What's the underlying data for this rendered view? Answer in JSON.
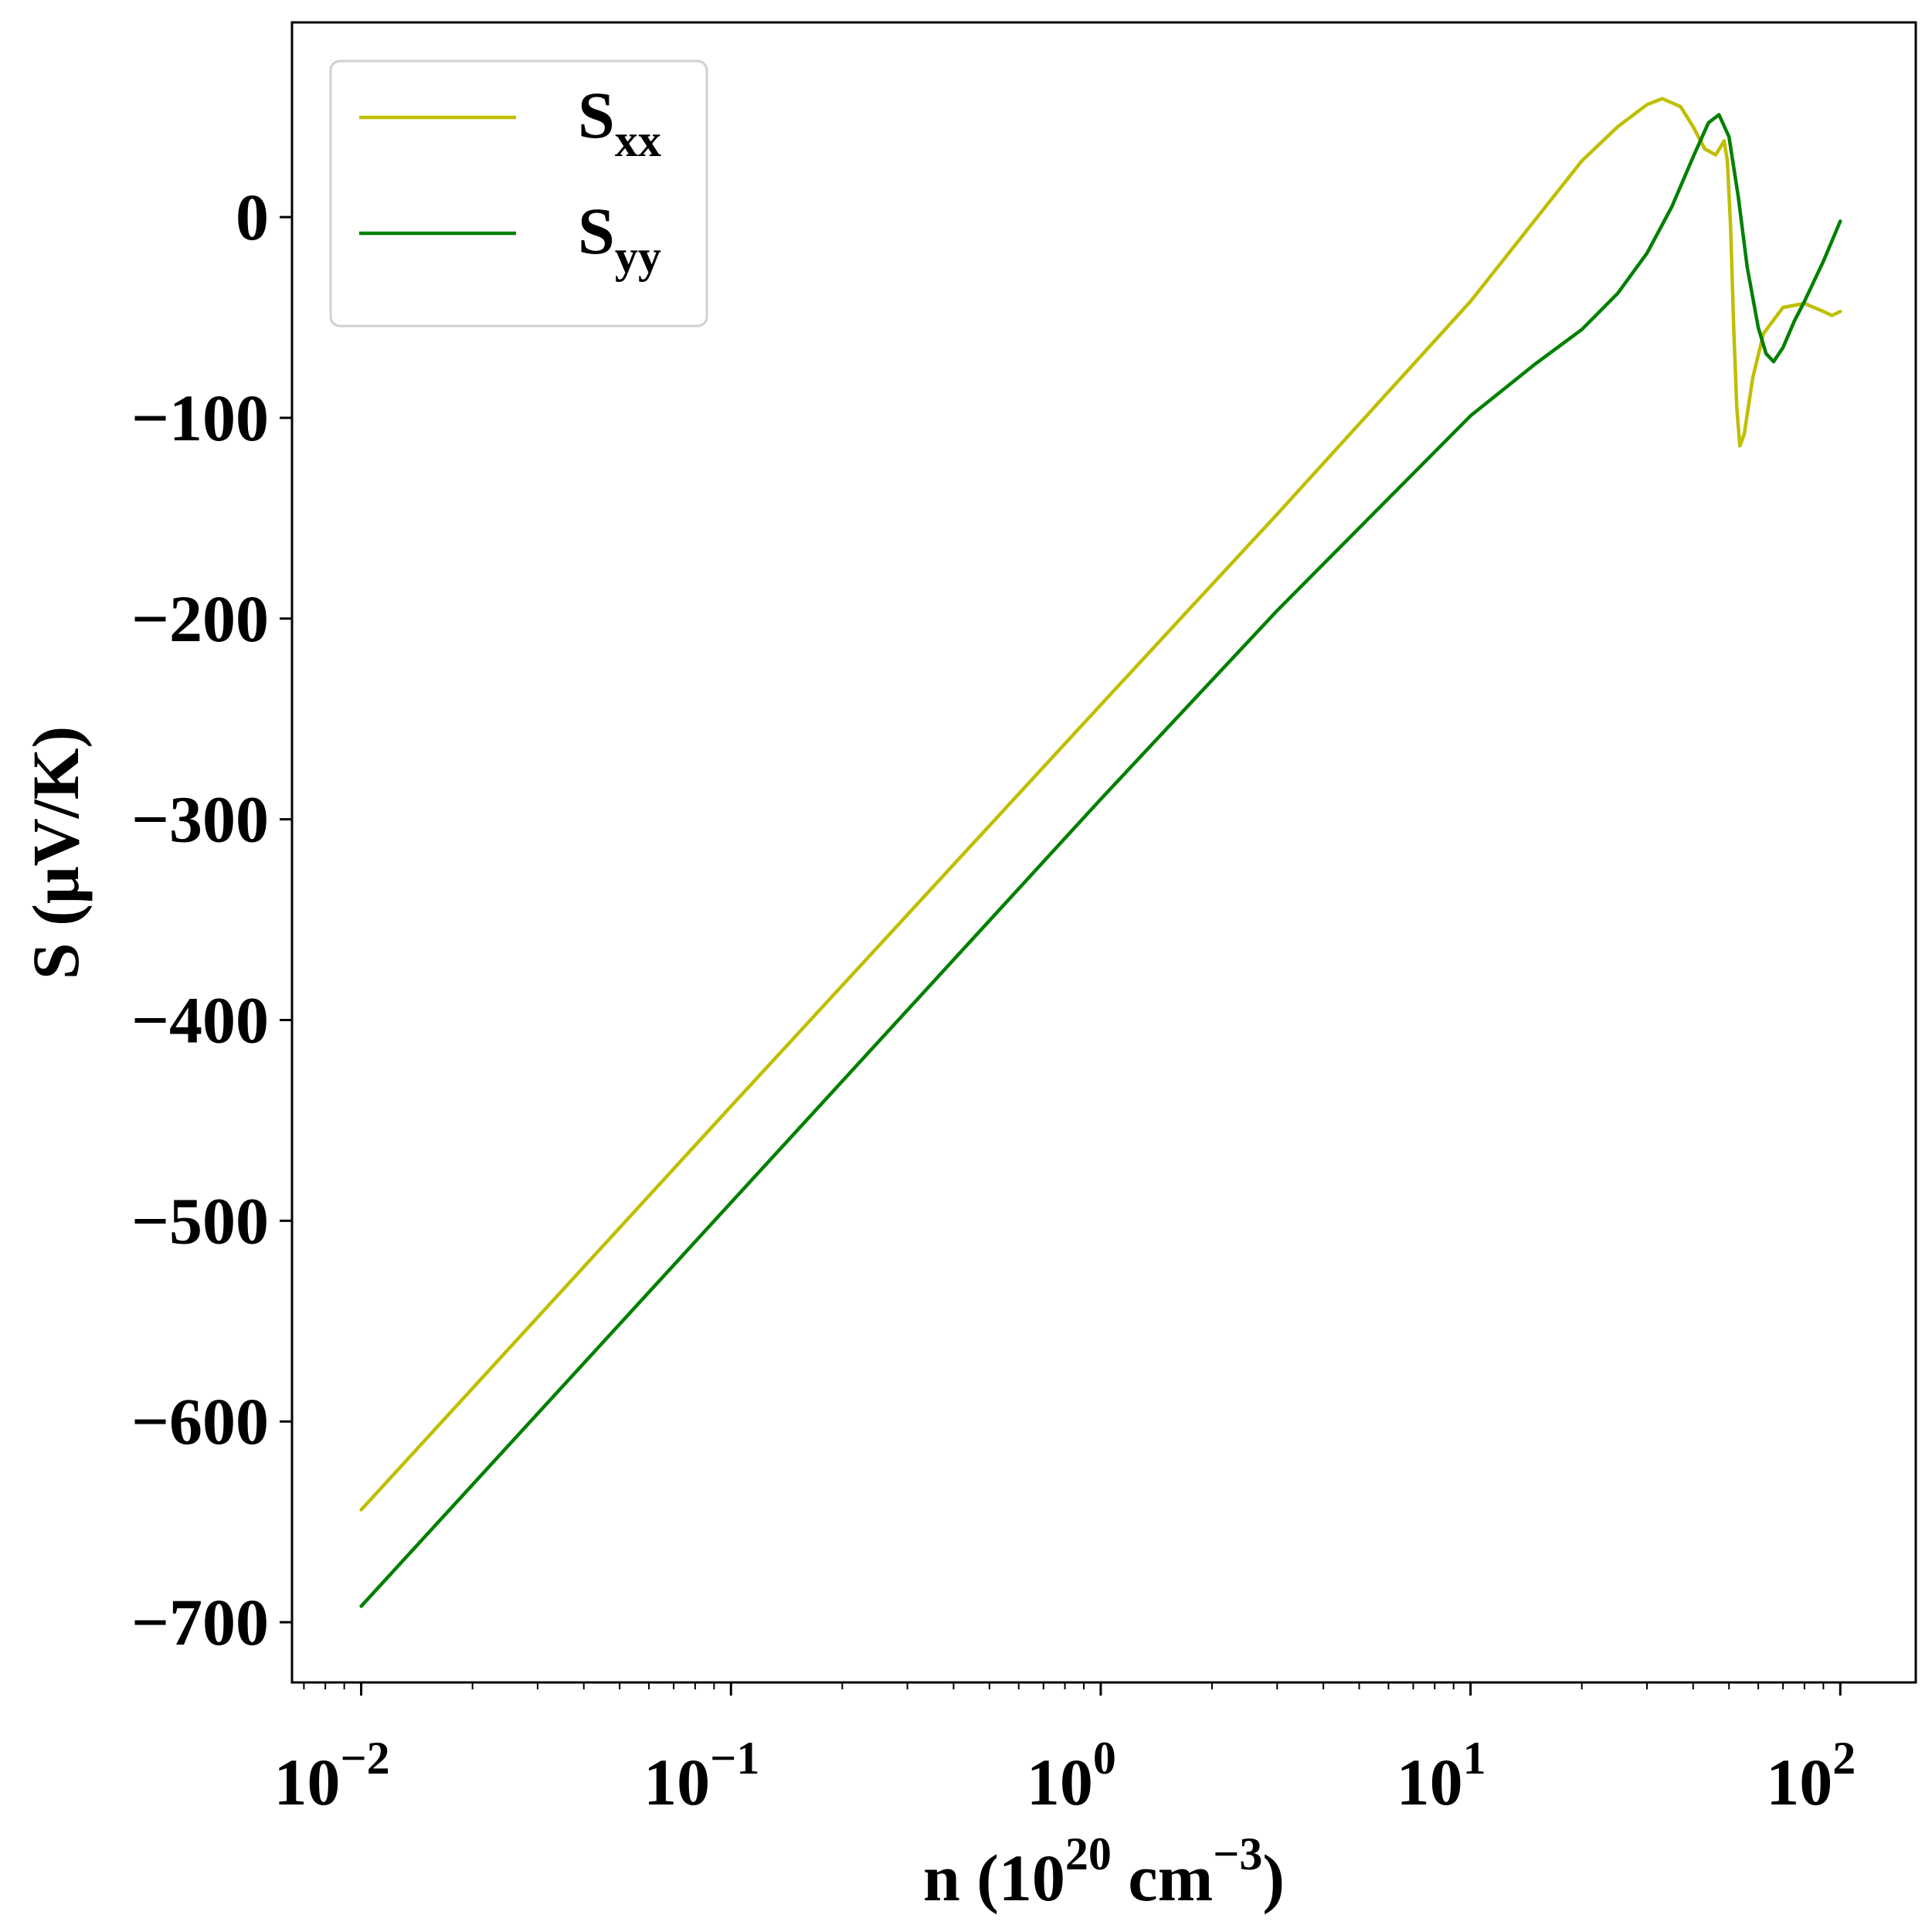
{
  "chart_data": {
    "type": "line",
    "title": "",
    "xlabel": {
      "main": "n (10",
      "exp1": "20",
      "mid": " cm",
      "exp2": "−3",
      "end": ")"
    },
    "ylabel": "S (μV/K)",
    "xscale": "log",
    "xlim": [
      0.0065,
      160
    ],
    "ylim": [
      -730,
      97
    ],
    "grid": false,
    "legend_position": "upper-left",
    "x_ticks": [
      {
        "value": 0.01,
        "base": "10",
        "exp": "−2"
      },
      {
        "value": 0.1,
        "base": "10",
        "exp": "−1"
      },
      {
        "value": 1,
        "base": "10",
        "exp": "0"
      },
      {
        "value": 10,
        "base": "10",
        "exp": "1"
      },
      {
        "value": 100,
        "base": "10",
        "exp": "2"
      }
    ],
    "y_ticks": [
      {
        "value": 0,
        "label": "0"
      },
      {
        "value": -100,
        "label": "−100"
      },
      {
        "value": -200,
        "label": "−200"
      },
      {
        "value": -300,
        "label": "−300"
      },
      {
        "value": -400,
        "label": "−400"
      },
      {
        "value": -500,
        "label": "−500"
      },
      {
        "value": -600,
        "label": "−600"
      },
      {
        "value": -700,
        "label": "−700"
      }
    ],
    "series": [
      {
        "name": "S",
        "name_sub": "xx",
        "color": "#bfbf00",
        "points": [
          [
            0.01,
            -644
          ],
          [
            0.1,
            -443
          ],
          [
            1,
            -243
          ],
          [
            3,
            -148
          ],
          [
            10,
            -42
          ],
          [
            20,
            28
          ],
          [
            25,
            45
          ],
          [
            30,
            56
          ],
          [
            33,
            59
          ],
          [
            37,
            55
          ],
          [
            40,
            45
          ],
          [
            43,
            34
          ],
          [
            46,
            31
          ],
          [
            47.5,
            35
          ],
          [
            48.5,
            38
          ],
          [
            49.5,
            28
          ],
          [
            50.5,
            -5
          ],
          [
            51.5,
            -55
          ],
          [
            52.5,
            -95
          ],
          [
            53.5,
            -114
          ],
          [
            55,
            -108
          ],
          [
            58,
            -80
          ],
          [
            62,
            -58
          ],
          [
            70,
            -45
          ],
          [
            80,
            -43
          ],
          [
            90,
            -47
          ],
          [
            95,
            -49
          ],
          [
            100,
            -47
          ]
        ]
      },
      {
        "name": "S",
        "name_sub": "yy",
        "color": "#008000",
        "points": [
          [
            0.01,
            -692
          ],
          [
            0.1,
            -491
          ],
          [
            1,
            -290
          ],
          [
            3,
            -196
          ],
          [
            10,
            -99
          ],
          [
            15,
            -73
          ],
          [
            20,
            -56
          ],
          [
            25,
            -38
          ],
          [
            30,
            -18
          ],
          [
            35,
            5
          ],
          [
            40,
            30
          ],
          [
            44,
            47
          ],
          [
            47,
            51
          ],
          [
            50,
            40
          ],
          [
            53,
            10
          ],
          [
            56,
            -25
          ],
          [
            60,
            -55
          ],
          [
            63,
            -68
          ],
          [
            66,
            -72
          ],
          [
            70,
            -65
          ],
          [
            75,
            -52
          ],
          [
            80,
            -42
          ],
          [
            90,
            -22
          ],
          [
            100,
            -2
          ]
        ]
      }
    ]
  }
}
